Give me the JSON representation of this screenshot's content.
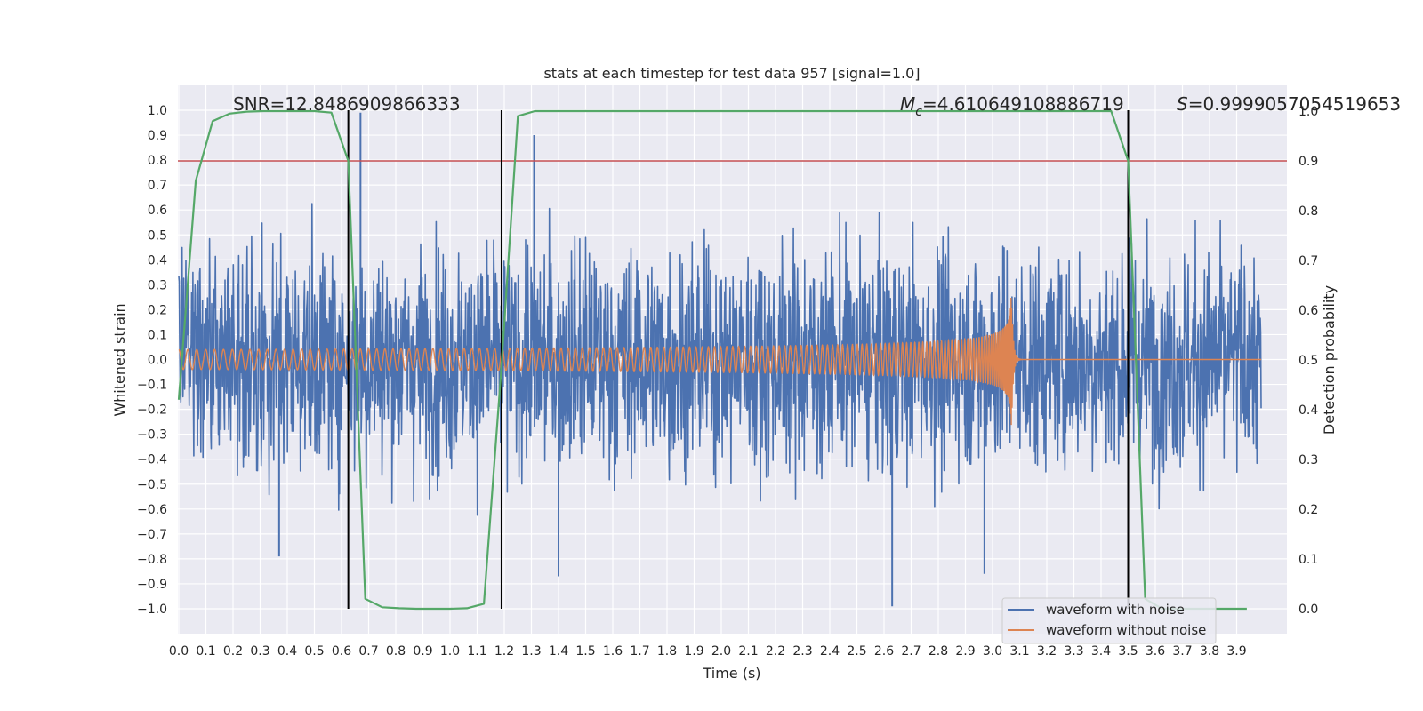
{
  "chart_data": {
    "type": "line",
    "title": "stats at each timestep for test data 957 [signal=1.0]",
    "xlabel": "Time (s)",
    "ylabel": "Whitened strain",
    "y2label": "Detection probability",
    "xlim": [
      0.0,
      3.99
    ],
    "ylim": [
      -1.1,
      1.1
    ],
    "y2lim": [
      -0.05,
      1.05
    ],
    "grid": true,
    "x_ticks": [
      0.0,
      0.1,
      0.2,
      0.3,
      0.4,
      0.5,
      0.6,
      0.7,
      0.8,
      0.9,
      1.0,
      1.1,
      1.2,
      1.3,
      1.4,
      1.5,
      1.6,
      1.7,
      1.8,
      1.9,
      2.0,
      2.1,
      2.2,
      2.3,
      2.4,
      2.5,
      2.6,
      2.7,
      2.8,
      2.9,
      3.0,
      3.1,
      3.2,
      3.3,
      3.4,
      3.5,
      3.6,
      3.7,
      3.8,
      3.9
    ],
    "x_tick_labels": [
      "0.0",
      "0.1",
      "0.2",
      "0.3",
      "0.4",
      "0.5",
      "0.6",
      "0.7",
      "0.8",
      "0.9",
      "1.0",
      "1.1",
      "1.2",
      "1.3",
      "1.4",
      "1.5",
      "1.6",
      "1.7",
      "1.8",
      "1.9",
      "2.0",
      "2.1",
      "2.2",
      "2.3",
      "2.4",
      "2.5",
      "2.6",
      "2.7",
      "2.8",
      "2.9",
      "3.0",
      "3.1",
      "3.2",
      "3.3",
      "3.4",
      "3.5",
      "3.6",
      "3.7",
      "3.8",
      "3.9"
    ],
    "y_ticks": [
      1.0,
      0.9,
      0.8,
      0.7,
      0.6,
      0.5,
      0.4,
      0.3,
      0.2,
      0.1,
      0.0,
      -0.1,
      -0.2,
      -0.3,
      -0.4,
      -0.5,
      -0.6,
      -0.7,
      -0.8,
      -0.9,
      -1.0
    ],
    "y_tick_labels": [
      "1.0",
      "0.9",
      "0.8",
      "0.7",
      "0.6",
      "0.5",
      "0.4",
      "0.3",
      "0.2",
      "0.1",
      "0.0",
      "−0.1",
      "−0.2",
      "−0.3",
      "−0.4",
      "−0.5",
      "−0.6",
      "−0.7",
      "−0.8",
      "−0.9",
      "−1.0"
    ],
    "y2_ticks": [
      1.0,
      0.9,
      0.8,
      0.7,
      0.6,
      0.5,
      0.4,
      0.3,
      0.2,
      0.1,
      0.0
    ],
    "y2_tick_labels": [
      "1.0",
      "0.9",
      "0.8",
      "0.7",
      "0.6",
      "0.5",
      "0.4",
      "0.3",
      "0.2",
      "0.1",
      "0.0"
    ],
    "annotations": {
      "snr": "SNR=12.8486909866333",
      "mc_symbol": "M",
      "mc_sub": "c",
      "mc_value": "=4.610649108886719",
      "s_symbol": "S",
      "s_value": "=0.9999057054519653"
    },
    "threshold": {
      "axis": "y2",
      "value": 0.9,
      "color": "#c44e52"
    },
    "vertical_lines": {
      "x": [
        0.625,
        1.19,
        3.5
      ],
      "y_range": [
        -1.0,
        1.0
      ],
      "color": "#000000"
    },
    "series": [
      {
        "name": "waveform with noise",
        "color": "#4c72b0",
        "axis": "y",
        "kind": "noise",
        "amplitude_range": [
          -1.0,
          1.0
        ],
        "notable_peaks": [
          {
            "x": 0.67,
            "y": 0.99
          },
          {
            "x": 1.31,
            "y": 0.9
          },
          {
            "x": 2.63,
            "y": -0.99
          },
          {
            "x": 0.37,
            "y": -0.79
          },
          {
            "x": 1.4,
            "y": -0.87
          },
          {
            "x": 2.97,
            "y": -0.86
          }
        ]
      },
      {
        "name": "waveform without noise",
        "color": "#dd8452",
        "axis": "y",
        "kind": "chirp",
        "merger_time": 3.07,
        "initial_amplitude": 0.04,
        "peak_amplitude": 0.28
      },
      {
        "name": "detection probability",
        "color": "#55a868",
        "axis": "y2",
        "x": [
          0.0,
          0.0625,
          0.125,
          0.1875,
          0.25,
          0.3125,
          0.375,
          0.4375,
          0.5,
          0.5625,
          0.625,
          0.6875,
          0.75,
          0.8125,
          0.875,
          0.9375,
          1.0,
          1.0625,
          1.125,
          1.1875,
          1.25,
          1.3125,
          1.375,
          1.4375,
          1.5,
          1.5625,
          1.625,
          1.6875,
          1.75,
          1.8125,
          1.875,
          1.9375,
          2.0,
          2.0625,
          2.125,
          2.1875,
          2.25,
          2.3125,
          2.375,
          2.4375,
          2.5,
          2.5625,
          2.625,
          2.6875,
          2.75,
          2.8125,
          2.875,
          2.9375,
          3.0,
          3.0625,
          3.125,
          3.1875,
          3.25,
          3.3125,
          3.375,
          3.4375,
          3.5,
          3.5625,
          3.625,
          3.6875,
          3.75,
          3.8125,
          3.875,
          3.9375
        ],
        "values": [
          0.42,
          0.86,
          0.98,
          0.995,
          0.999,
          1.0,
          1.0,
          1.0,
          1.0,
          0.997,
          0.9,
          0.02,
          0.003,
          0.001,
          0.0,
          0.0,
          0.0,
          0.001,
          0.01,
          0.47,
          0.99,
          1.0,
          1.0,
          1.0,
          1.0,
          1.0,
          1.0,
          1.0,
          1.0,
          1.0,
          1.0,
          1.0,
          1.0,
          1.0,
          1.0,
          1.0,
          1.0,
          1.0,
          1.0,
          1.0,
          1.0,
          1.0,
          1.0,
          1.0,
          1.0,
          1.0,
          1.0,
          1.0,
          1.0,
          1.0,
          1.0,
          1.0,
          1.0,
          1.0,
          1.0,
          1.0,
          0.9,
          0.02,
          0.0,
          0.0,
          0.0,
          0.0,
          0.0,
          0.0
        ]
      }
    ],
    "legend": {
      "location": "lower-right",
      "entries": [
        "waveform with noise",
        "waveform without noise"
      ]
    }
  }
}
